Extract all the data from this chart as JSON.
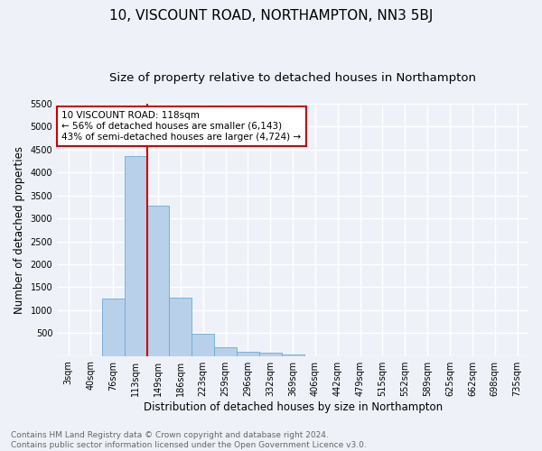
{
  "title": "10, VISCOUNT ROAD, NORTHAMPTON, NN3 5BJ",
  "subtitle": "Size of property relative to detached houses in Northampton",
  "xlabel": "Distribution of detached houses by size in Northampton",
  "ylabel": "Number of detached properties",
  "bar_labels": [
    "3sqm",
    "40sqm",
    "76sqm",
    "113sqm",
    "149sqm",
    "186sqm",
    "223sqm",
    "259sqm",
    "296sqm",
    "332sqm",
    "369sqm",
    "406sqm",
    "442sqm",
    "479sqm",
    "515sqm",
    "552sqm",
    "589sqm",
    "625sqm",
    "662sqm",
    "698sqm",
    "735sqm"
  ],
  "bar_values": [
    0,
    0,
    1260,
    4350,
    3270,
    1270,
    480,
    190,
    100,
    65,
    30,
    0,
    0,
    0,
    0,
    0,
    0,
    0,
    0,
    0,
    0
  ],
  "bar_color": "#b8d0ea",
  "bar_edge_color": "#6aaad4",
  "vline_color": "#cc0000",
  "annotation_text": "10 VISCOUNT ROAD: 118sqm\n← 56% of detached houses are smaller (6,143)\n43% of semi-detached houses are larger (4,724) →",
  "ylim": [
    0,
    5500
  ],
  "yticks": [
    0,
    500,
    1000,
    1500,
    2000,
    2500,
    3000,
    3500,
    4000,
    4500,
    5000,
    5500
  ],
  "footer_text": "Contains HM Land Registry data © Crown copyright and database right 2024.\nContains public sector information licensed under the Open Government Licence v3.0.",
  "background_color": "#eef2f8",
  "grid_color": "#ffffff",
  "title_fontsize": 11,
  "subtitle_fontsize": 9.5,
  "label_fontsize": 8.5,
  "tick_fontsize": 7,
  "footer_fontsize": 6.5,
  "annotation_fontsize": 7.5
}
